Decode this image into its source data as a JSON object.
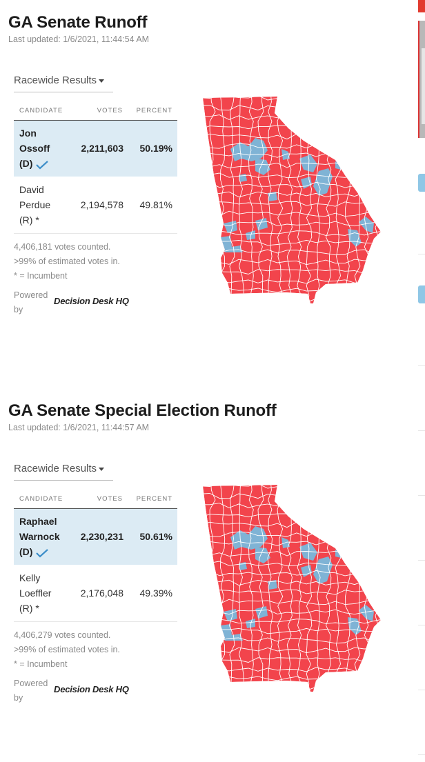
{
  "races": [
    {
      "title": "GA Senate Runoff",
      "updated": "Last updated: 1/6/2021, 11:44:54 AM",
      "dropdown": "Racewide Results",
      "headers": {
        "candidate": "CANDIDATE",
        "votes": "VOTES",
        "percent": "PERCENT"
      },
      "candidates": [
        {
          "name_line1": "Jon",
          "name_line2": "Ossoff",
          "party": "(D)",
          "votes": "2,211,603",
          "percent": "50.19%",
          "winner": true
        },
        {
          "name_line1": "David",
          "name_line2": "Perdue",
          "party": "(R) *",
          "votes": "2,194,578",
          "percent": "49.81%",
          "winner": false
        }
      ],
      "votes_counted": "4,406,181 votes counted.",
      "estimated": ">99% of estimated votes in.",
      "incumbent_note": "* = Incumbent",
      "powered_by": "Powered by",
      "brand": "Decision Desk HQ"
    },
    {
      "title": "GA Senate Special Election Runoff",
      "updated": "Last updated: 1/6/2021, 11:44:57 AM",
      "dropdown": "Racewide Results",
      "headers": {
        "candidate": "CANDIDATE",
        "votes": "VOTES",
        "percent": "PERCENT"
      },
      "candidates": [
        {
          "name_line1": "Raphael",
          "name_line2": "Warnock",
          "party": "(D)",
          "votes": "2,230,231",
          "percent": "50.61%",
          "winner": true
        },
        {
          "name_line1": "Kelly",
          "name_line2": "Loeffler",
          "party": "(R) *",
          "votes": "2,176,048",
          "percent": "49.39%",
          "winner": false
        }
      ],
      "votes_counted": "4,406,279 votes counted.",
      "estimated": ">99% of estimated votes in.",
      "incumbent_note": "* = Incumbent",
      "powered_by": "Powered by",
      "brand": "Decision Desk HQ"
    }
  ],
  "colors": {
    "republican": "#f2444c",
    "democrat": "#7fb3d5",
    "winner_row": "#dcebf4",
    "check": "#3d8ec9"
  },
  "icons": [
    "checkmark-icon",
    "caret-down-icon",
    "georgia-county-map"
  ]
}
